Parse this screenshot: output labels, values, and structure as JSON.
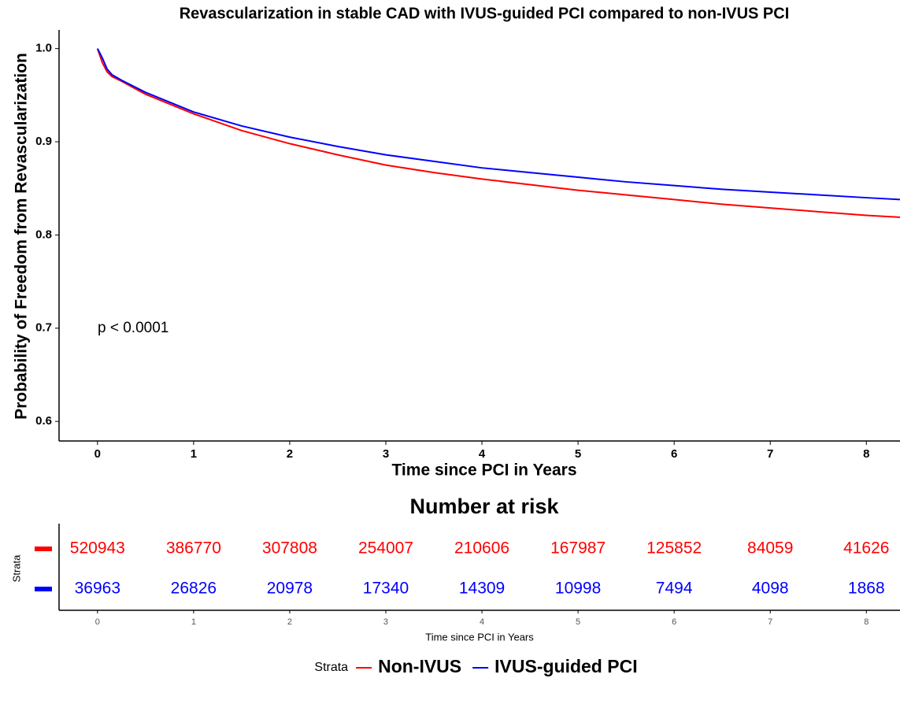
{
  "chart_data": [
    {
      "type": "line",
      "title": "Revascularization in stable CAD with IVUS-guided PCI compared to non-IVUS PCI",
      "xlabel": "Time since PCI in Years",
      "ylabel": "Probability of Freedom from Revascularization",
      "annotation": "p < 0.0001",
      "x": [
        0,
        0.05,
        0.1,
        0.15,
        0.25,
        0.5,
        1,
        1.5,
        2,
        2.5,
        3,
        3.5,
        4,
        4.5,
        5,
        5.5,
        6,
        6.5,
        7,
        7.5,
        8,
        8.35
      ],
      "series": [
        {
          "name": "Non-IVUS",
          "color": "#ff0000",
          "values": [
            1.0,
            0.985,
            0.975,
            0.97,
            0.965,
            0.951,
            0.93,
            0.912,
            0.898,
            0.886,
            0.875,
            0.867,
            0.86,
            0.854,
            0.848,
            0.843,
            0.838,
            0.833,
            0.829,
            0.825,
            0.821,
            0.819
          ]
        },
        {
          "name": "IVUS-guided PCI",
          "color": "#0000ff",
          "values": [
            1.0,
            0.99,
            0.978,
            0.972,
            0.966,
            0.953,
            0.932,
            0.917,
            0.905,
            0.895,
            0.886,
            0.879,
            0.872,
            0.867,
            0.862,
            0.857,
            0.853,
            0.849,
            0.846,
            0.843,
            0.84,
            0.838
          ]
        }
      ],
      "xlim": [
        -0.4,
        8.35
      ],
      "ylim": [
        0.579,
        1.02
      ],
      "xticks": [
        0,
        1,
        2,
        3,
        4,
        5,
        6,
        7,
        8
      ],
      "yticks": [
        0.6,
        0.7,
        0.8,
        0.9,
        {
          "value": 1,
          "label": "1.0"
        }
      ],
      "legend_title": "Strata",
      "legend": "bottom"
    },
    {
      "type": "table",
      "title": "Number at risk",
      "ylabel": "Strata",
      "xlabel": "Time since PCI in Years",
      "xlim": [
        -0.4,
        8.35
      ],
      "xticks": [
        0,
        1,
        2,
        3,
        4,
        5,
        6,
        7,
        8
      ],
      "rows": [
        {
          "color": "#ff0000",
          "values": [
            520943,
            386770,
            307808,
            254007,
            210606,
            167987,
            125852,
            84059,
            41626
          ]
        },
        {
          "color": "#0000ff",
          "values": [
            36963,
            26826,
            20978,
            17340,
            14309,
            10998,
            7494,
            4098,
            1868
          ]
        }
      ]
    }
  ]
}
